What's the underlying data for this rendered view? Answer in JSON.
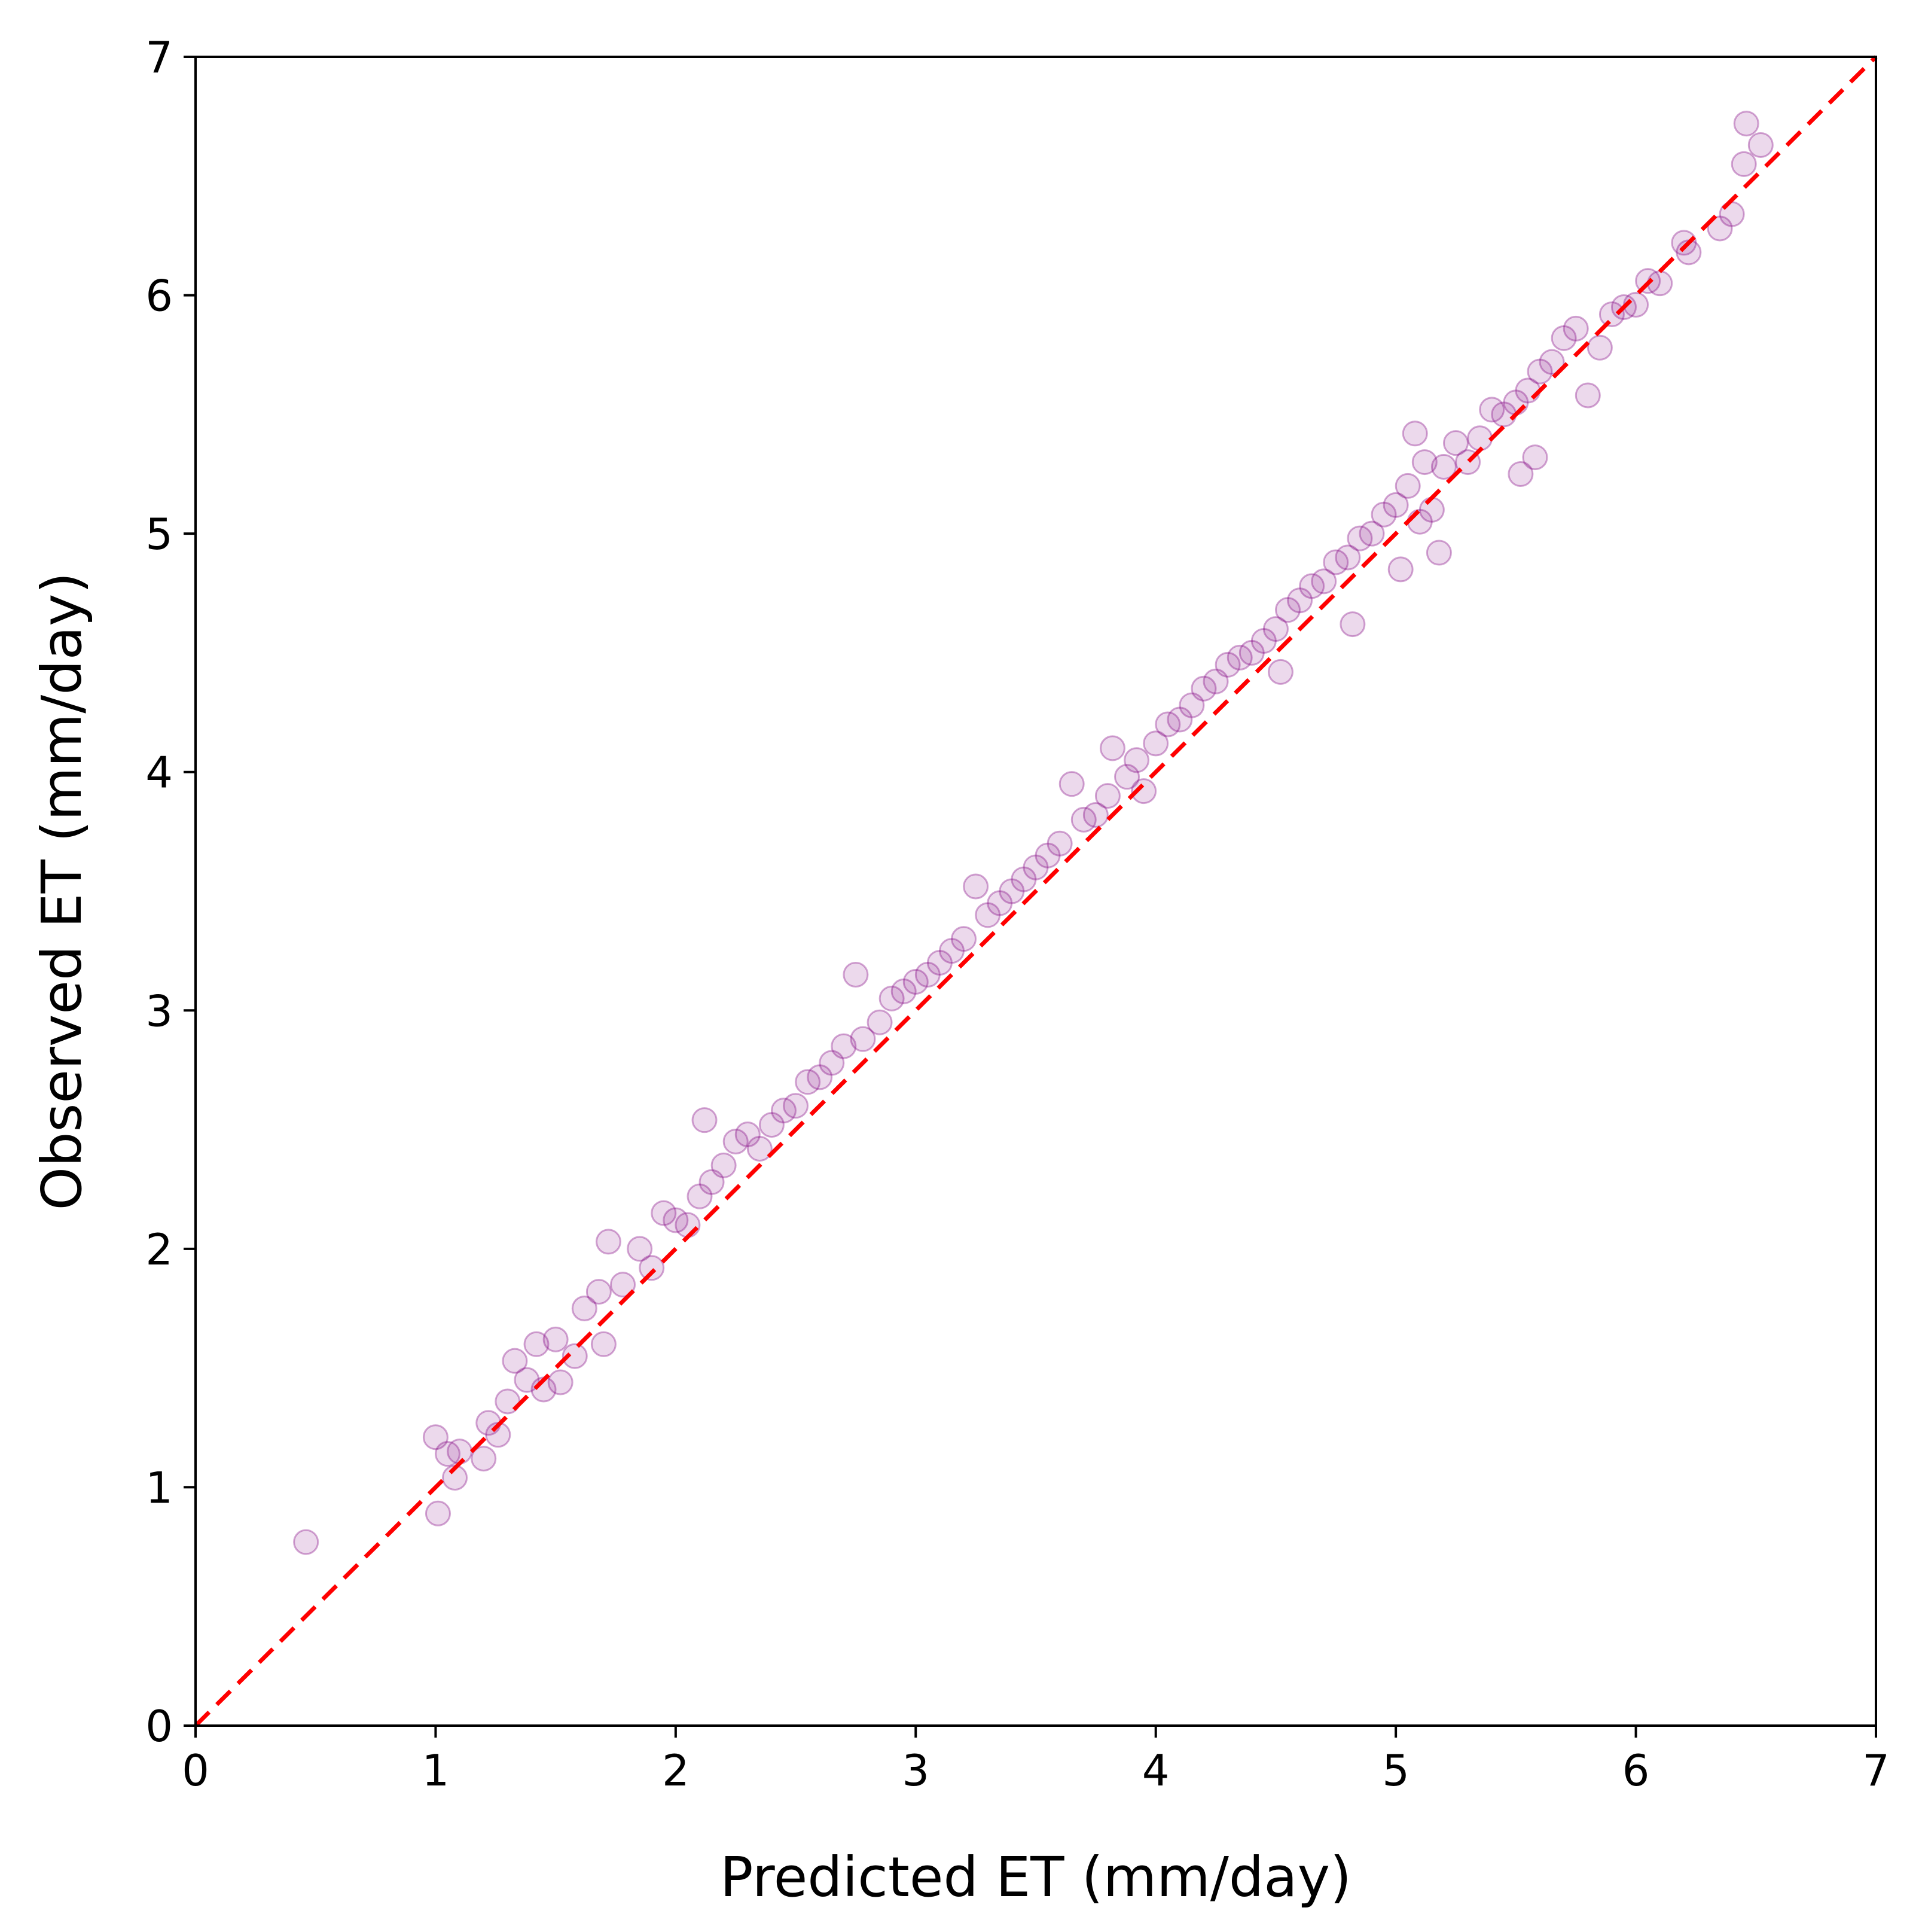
{
  "chart_data": {
    "type": "scatter",
    "title": "",
    "xlabel": "Predicted ET (mm/day)",
    "ylabel": "Observed ET (mm/day)",
    "xlim": [
      0,
      7
    ],
    "ylim": [
      0,
      7
    ],
    "x_ticks": [
      "0",
      "1",
      "2",
      "3",
      "4",
      "5",
      "6",
      "7"
    ],
    "y_ticks": [
      "0",
      "1",
      "2",
      "3",
      "4",
      "5",
      "6",
      "7"
    ],
    "grid": false,
    "legend": "none",
    "marker_color": "#800080",
    "marker_alpha": 0.15,
    "reference_line": {
      "style": "dashed",
      "color": "#ff0000",
      "from": [
        0,
        0
      ],
      "to": [
        7,
        7
      ]
    },
    "series": [
      {
        "points": [
          [
            0.46,
            0.77
          ],
          [
            1.0,
            1.21
          ],
          [
            1.01,
            0.89
          ],
          [
            1.05,
            1.14
          ],
          [
            1.08,
            1.04
          ],
          [
            1.1,
            1.15
          ],
          [
            1.2,
            1.12
          ],
          [
            1.22,
            1.27
          ],
          [
            1.26,
            1.22
          ],
          [
            1.3,
            1.36
          ],
          [
            1.33,
            1.53
          ],
          [
            1.38,
            1.45
          ],
          [
            1.42,
            1.6
          ],
          [
            1.45,
            1.41
          ],
          [
            1.5,
            1.62
          ],
          [
            1.52,
            1.44
          ],
          [
            1.58,
            1.55
          ],
          [
            1.62,
            1.75
          ],
          [
            1.68,
            1.82
          ],
          [
            1.7,
            1.6
          ],
          [
            1.72,
            2.03
          ],
          [
            1.78,
            1.85
          ],
          [
            1.85,
            2.0
          ],
          [
            1.9,
            1.92
          ],
          [
            1.95,
            2.15
          ],
          [
            2.0,
            2.12
          ],
          [
            2.05,
            2.1
          ],
          [
            2.1,
            2.22
          ],
          [
            2.12,
            2.54
          ],
          [
            2.15,
            2.28
          ],
          [
            2.2,
            2.35
          ],
          [
            2.25,
            2.45
          ],
          [
            2.3,
            2.48
          ],
          [
            2.35,
            2.42
          ],
          [
            2.4,
            2.52
          ],
          [
            2.45,
            2.58
          ],
          [
            2.5,
            2.6
          ],
          [
            2.55,
            2.7
          ],
          [
            2.6,
            2.72
          ],
          [
            2.65,
            2.78
          ],
          [
            2.7,
            2.85
          ],
          [
            2.75,
            3.15
          ],
          [
            2.78,
            2.88
          ],
          [
            2.85,
            2.95
          ],
          [
            2.9,
            3.05
          ],
          [
            2.95,
            3.08
          ],
          [
            3.0,
            3.12
          ],
          [
            3.05,
            3.15
          ],
          [
            3.1,
            3.2
          ],
          [
            3.15,
            3.25
          ],
          [
            3.2,
            3.3
          ],
          [
            3.25,
            3.52
          ],
          [
            3.3,
            3.4
          ],
          [
            3.35,
            3.45
          ],
          [
            3.4,
            3.5
          ],
          [
            3.45,
            3.55
          ],
          [
            3.5,
            3.6
          ],
          [
            3.55,
            3.65
          ],
          [
            3.6,
            3.7
          ],
          [
            3.65,
            3.95
          ],
          [
            3.7,
            3.8
          ],
          [
            3.75,
            3.82
          ],
          [
            3.8,
            3.9
          ],
          [
            3.82,
            4.1
          ],
          [
            3.88,
            3.98
          ],
          [
            3.92,
            4.05
          ],
          [
            3.95,
            3.92
          ],
          [
            4.0,
            4.12
          ],
          [
            4.05,
            4.2
          ],
          [
            4.1,
            4.22
          ],
          [
            4.15,
            4.28
          ],
          [
            4.2,
            4.35
          ],
          [
            4.25,
            4.38
          ],
          [
            4.3,
            4.45
          ],
          [
            4.35,
            4.48
          ],
          [
            4.4,
            4.5
          ],
          [
            4.45,
            4.55
          ],
          [
            4.5,
            4.6
          ],
          [
            4.52,
            4.42
          ],
          [
            4.55,
            4.68
          ],
          [
            4.6,
            4.72
          ],
          [
            4.65,
            4.78
          ],
          [
            4.7,
            4.8
          ],
          [
            4.75,
            4.88
          ],
          [
            4.8,
            4.9
          ],
          [
            4.82,
            4.62
          ],
          [
            4.85,
            4.98
          ],
          [
            4.9,
            5.0
          ],
          [
            4.95,
            5.08
          ],
          [
            5.0,
            5.12
          ],
          [
            5.02,
            4.85
          ],
          [
            5.05,
            5.2
          ],
          [
            5.08,
            5.42
          ],
          [
            5.1,
            5.05
          ],
          [
            5.12,
            5.3
          ],
          [
            5.15,
            5.1
          ],
          [
            5.18,
            4.92
          ],
          [
            5.2,
            5.28
          ],
          [
            5.25,
            5.38
          ],
          [
            5.3,
            5.3
          ],
          [
            5.35,
            5.4
          ],
          [
            5.4,
            5.52
          ],
          [
            5.45,
            5.5
          ],
          [
            5.5,
            5.55
          ],
          [
            5.52,
            5.25
          ],
          [
            5.55,
            5.6
          ],
          [
            5.58,
            5.32
          ],
          [
            5.6,
            5.68
          ],
          [
            5.65,
            5.72
          ],
          [
            5.7,
            5.82
          ],
          [
            5.75,
            5.86
          ],
          [
            5.8,
            5.58
          ],
          [
            5.85,
            5.78
          ],
          [
            5.9,
            5.92
          ],
          [
            5.95,
            5.95
          ],
          [
            6.0,
            5.96
          ],
          [
            6.05,
            6.06
          ],
          [
            6.1,
            6.05
          ],
          [
            6.2,
            6.22
          ],
          [
            6.22,
            6.18
          ],
          [
            6.35,
            6.28
          ],
          [
            6.4,
            6.34
          ],
          [
            6.45,
            6.55
          ],
          [
            6.46,
            6.72
          ],
          [
            6.52,
            6.63
          ]
        ]
      }
    ]
  }
}
